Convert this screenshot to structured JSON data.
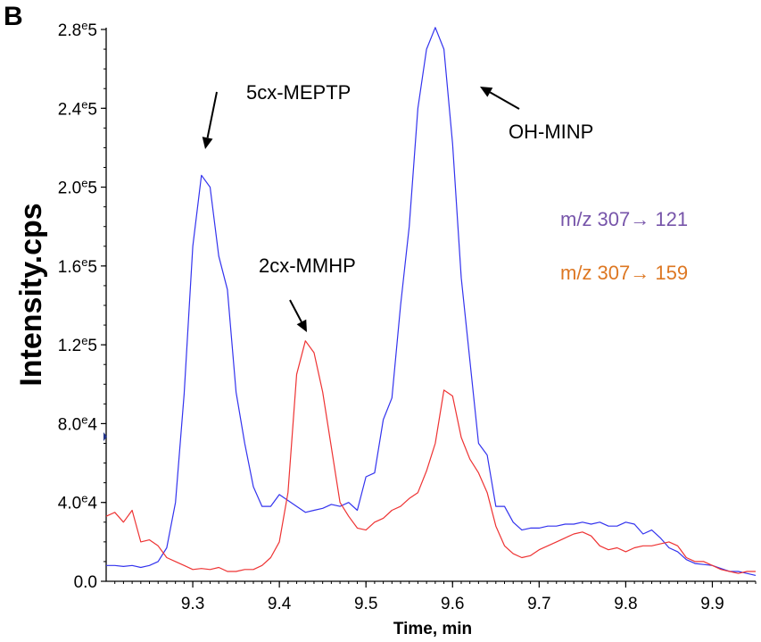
{
  "chart_data": {
    "type": "line",
    "panel_label": "B",
    "title": "",
    "xlabel": "Time, min",
    "ylabel": "Intensity.cps",
    "xlim": [
      9.2,
      9.95
    ],
    "ylim": [
      0,
      280000
    ],
    "x_ticks": [
      {
        "value": 9.3,
        "label": "9.3"
      },
      {
        "value": 9.4,
        "label": "9.4"
      },
      {
        "value": 9.5,
        "label": "9.5"
      },
      {
        "value": 9.6,
        "label": "9.6"
      },
      {
        "value": 9.7,
        "label": "9.7"
      },
      {
        "value": 9.8,
        "label": "9.8"
      },
      {
        "value": 9.9,
        "label": "9.9"
      }
    ],
    "y_ticks": [
      {
        "value": 0,
        "base": "0.0",
        "exp": ""
      },
      {
        "value": 40000,
        "base": "4.0",
        "exp": "e4"
      },
      {
        "value": 80000,
        "base": "8.0",
        "exp": "e4"
      },
      {
        "value": 120000,
        "base": "1.2",
        "exp": "e5"
      },
      {
        "value": 160000,
        "base": "1.6",
        "exp": "e5"
      },
      {
        "value": 200000,
        "base": "2.0",
        "exp": "e5"
      },
      {
        "value": 240000,
        "base": "2.4",
        "exp": "e5"
      },
      {
        "value": 280000,
        "base": "2.8",
        "exp": "e5"
      }
    ],
    "grid": false,
    "series": [
      {
        "color": "#3333ee",
        "x": [
          9.2,
          9.21,
          9.22,
          9.23,
          9.24,
          9.25,
          9.26,
          9.27,
          9.28,
          9.29,
          9.3,
          9.31,
          9.32,
          9.33,
          9.34,
          9.35,
          9.36,
          9.37,
          9.38,
          9.39,
          9.4,
          9.41,
          9.42,
          9.43,
          9.44,
          9.45,
          9.46,
          9.47,
          9.48,
          9.49,
          9.5,
          9.51,
          9.52,
          9.53,
          9.54,
          9.55,
          9.56,
          9.57,
          9.58,
          9.59,
          9.6,
          9.61,
          9.62,
          9.63,
          9.64,
          9.65,
          9.66,
          9.67,
          9.68,
          9.69,
          9.7,
          9.71,
          9.72,
          9.73,
          9.74,
          9.75,
          9.76,
          9.77,
          9.78,
          9.79,
          9.8,
          9.81,
          9.82,
          9.83,
          9.84,
          9.85,
          9.86,
          9.87,
          9.88,
          9.89,
          9.9,
          9.91,
          9.92,
          9.93,
          9.94,
          9.95
        ],
        "values": [
          8000,
          8000,
          7500,
          8000,
          7000,
          8000,
          10000,
          17000,
          40000,
          95000,
          170000,
          206000,
          200000,
          165000,
          148000,
          96000,
          70000,
          48000,
          38000,
          38000,
          44000,
          41000,
          38000,
          35000,
          36000,
          37000,
          39000,
          38000,
          40000,
          36000,
          53000,
          55000,
          82000,
          93000,
          140000,
          180000,
          240000,
          270000,
          281000,
          270000,
          222000,
          154000,
          112000,
          70000,
          64000,
          38000,
          38000,
          30000,
          26000,
          27000,
          27000,
          28000,
          28000,
          29000,
          29000,
          30000,
          29000,
          30000,
          28000,
          28000,
          30000,
          29000,
          24000,
          26000,
          22000,
          17000,
          15000,
          11000,
          9000,
          8500,
          8000,
          6500,
          5000,
          5000,
          4000,
          3000
        ],
        "legend_label": "m/z 307→ 121"
      },
      {
        "color": "#ee3333",
        "x": [
          9.2,
          9.21,
          9.22,
          9.23,
          9.24,
          9.25,
          9.26,
          9.27,
          9.28,
          9.29,
          9.3,
          9.31,
          9.32,
          9.33,
          9.34,
          9.35,
          9.36,
          9.37,
          9.38,
          9.39,
          9.4,
          9.41,
          9.42,
          9.43,
          9.44,
          9.45,
          9.46,
          9.47,
          9.48,
          9.49,
          9.5,
          9.51,
          9.52,
          9.53,
          9.54,
          9.55,
          9.56,
          9.57,
          9.58,
          9.59,
          9.6,
          9.61,
          9.62,
          9.63,
          9.64,
          9.65,
          9.66,
          9.67,
          9.68,
          9.69,
          9.7,
          9.71,
          9.72,
          9.73,
          9.74,
          9.75,
          9.76,
          9.77,
          9.78,
          9.79,
          9.8,
          9.81,
          9.82,
          9.83,
          9.84,
          9.85,
          9.86,
          9.87,
          9.88,
          9.89,
          9.9,
          9.91,
          9.92,
          9.93,
          9.94,
          9.95
        ],
        "values": [
          33000,
          35000,
          30000,
          36000,
          20000,
          21000,
          18000,
          12000,
          10000,
          8000,
          6000,
          6500,
          6000,
          7000,
          5000,
          5000,
          6000,
          6000,
          8000,
          12000,
          20000,
          45000,
          105000,
          122000,
          116000,
          96000,
          68000,
          40000,
          33000,
          27000,
          26000,
          30000,
          32000,
          36000,
          38000,
          42000,
          45000,
          56000,
          70000,
          97000,
          94000,
          73000,
          62000,
          55000,
          45000,
          28000,
          18000,
          14000,
          12000,
          13000,
          16000,
          18000,
          20000,
          22000,
          24000,
          25000,
          23000,
          18000,
          16000,
          17000,
          15000,
          17000,
          18000,
          18000,
          19000,
          20000,
          18000,
          12000,
          10000,
          10000,
          8000,
          6000,
          5000,
          4000,
          5000,
          5000
        ],
        "legend_label": "m/z 307→ 159"
      }
    ],
    "legend": {
      "placement": "right",
      "entries": [
        {
          "label": "m/z 307→ 121",
          "color": "#7755aa"
        },
        {
          "label": "m/z 307→ 159",
          "color": "#dd7722"
        }
      ]
    },
    "annotations": [
      {
        "text": "5cx-MEPTP",
        "target_x": 9.31,
        "target_y": 210000
      },
      {
        "text": "OH-MINP",
        "target_x": 9.62,
        "target_y": 272000
      },
      {
        "text": "2cx-MMHP",
        "target_x": 9.43,
        "target_y": 126000
      }
    ]
  }
}
